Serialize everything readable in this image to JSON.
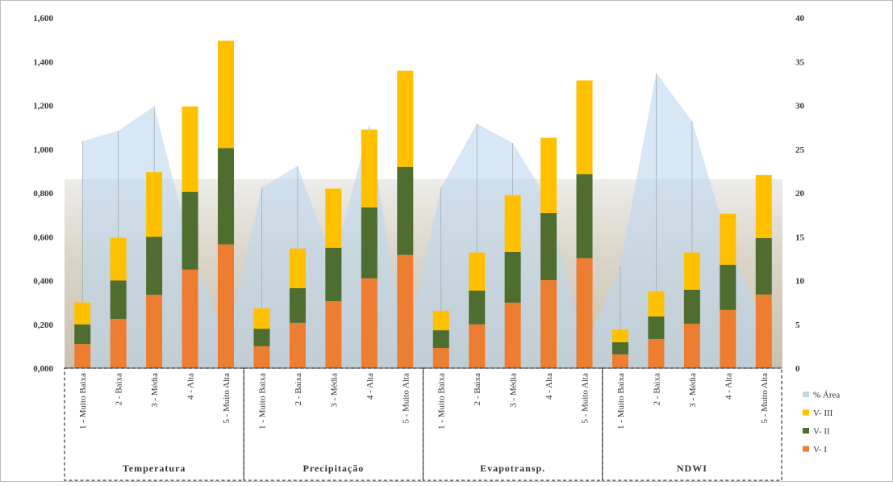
{
  "chart_data": {
    "type": "bar",
    "stacked": true,
    "categories": [
      "1 - Muito Baixa",
      "2 - Baixa",
      "3 - Média",
      "4 - Alta",
      "5 - Muito Alta",
      "1 - Muito Baixa",
      "2 - Baixa",
      "3 - Média",
      "4 - Alta",
      "5 - Muito Alta",
      "1 - Muito Baixa",
      "2 - Baixa",
      "3 - Média",
      "4 - Alta",
      "5 - Muito Alta",
      "1 - Muito Baixa",
      "2 - Baixa",
      "3 - Média",
      "4 - Alta",
      "5 - Muito Alta"
    ],
    "groups": [
      "Temperatura",
      "Precipitação",
      "Evapotransp.",
      "NDWI"
    ],
    "series": [
      {
        "name": "V- I",
        "color": "#ed7d31",
        "values": [
          0.11,
          0.225,
          0.335,
          0.45,
          0.565,
          0.1,
          0.207,
          0.306,
          0.41,
          0.517,
          0.092,
          0.2,
          0.299,
          0.402,
          0.502,
          0.063,
          0.133,
          0.203,
          0.266,
          0.336
        ]
      },
      {
        "name": "V- II",
        "color": "#4f6d2f",
        "values": [
          0.09,
          0.175,
          0.265,
          0.355,
          0.44,
          0.08,
          0.158,
          0.244,
          0.324,
          0.402,
          0.081,
          0.154,
          0.232,
          0.306,
          0.384,
          0.055,
          0.103,
          0.155,
          0.206,
          0.258
        ]
      },
      {
        "name": "V- III",
        "color": "#ffc000",
        "values": [
          0.1,
          0.195,
          0.295,
          0.39,
          0.49,
          0.093,
          0.181,
          0.27,
          0.355,
          0.439,
          0.089,
          0.174,
          0.259,
          0.344,
          0.428,
          0.059,
          0.115,
          0.17,
          0.233,
          0.288
        ]
      },
      {
        "name": "% Área",
        "type": "area",
        "axis": "y2",
        "color": "#bdd7ee",
        "values": [
          25.9,
          27.1,
          29.9,
          14,
          3,
          20.6,
          23.1,
          12,
          27.7,
          2,
          20.6,
          27.9,
          25.7,
          19,
          2.4,
          11.6,
          33.7,
          28.2,
          14.4,
          5
        ]
      }
    ],
    "ylim": [
      0,
      1.6
    ],
    "yticks": [
      {
        "value": 0,
        "label": "0,000"
      },
      {
        "value": 0.2,
        "label": "0,200"
      },
      {
        "value": 0.4,
        "label": "0,400"
      },
      {
        "value": 0.6,
        "label": "0,600"
      },
      {
        "value": 0.8,
        "label": "0,800"
      },
      {
        "value": 1.0,
        "label": "1,000"
      },
      {
        "value": 1.2,
        "label": "1,200"
      },
      {
        "value": 1.4,
        "label": "1,400"
      },
      {
        "value": 1.6,
        "label": "1,600"
      }
    ],
    "y2lim": [
      0,
      40
    ],
    "y2ticks": [
      0,
      5,
      10,
      15,
      20,
      25,
      30,
      35,
      40
    ],
    "legend": "right"
  }
}
